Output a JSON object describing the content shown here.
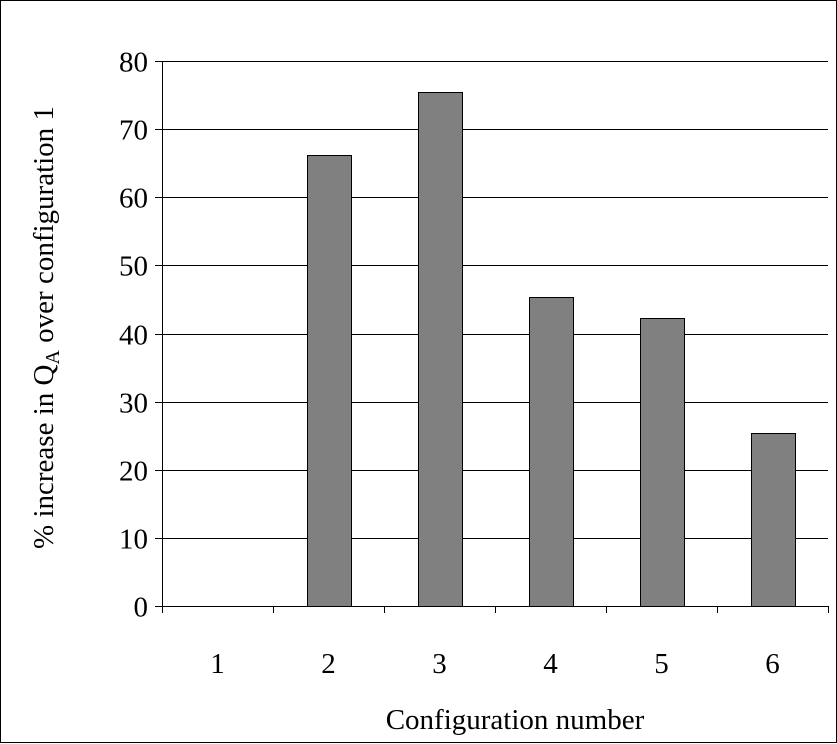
{
  "chart_data": {
    "type": "bar",
    "categories": [
      "1",
      "2",
      "3",
      "4",
      "5",
      "6"
    ],
    "values": [
      0,
      66.2,
      75.5,
      45.4,
      42.3,
      25.4
    ],
    "xlabel": "Configuration number",
    "ylabel": {
      "prefix": "% increase in Q",
      "subscript": "A",
      "suffix": " over configuration 1"
    },
    "ylim": [
      0,
      80
    ],
    "yticks": [
      "0",
      "10",
      "20",
      "30",
      "40",
      "50",
      "60",
      "70",
      "80"
    ],
    "grid": true,
    "legend": "none",
    "colors": {
      "bar_fill": "#808080",
      "bar_stroke": "#000000",
      "grid": "#000000",
      "background": "#ffffff"
    }
  }
}
